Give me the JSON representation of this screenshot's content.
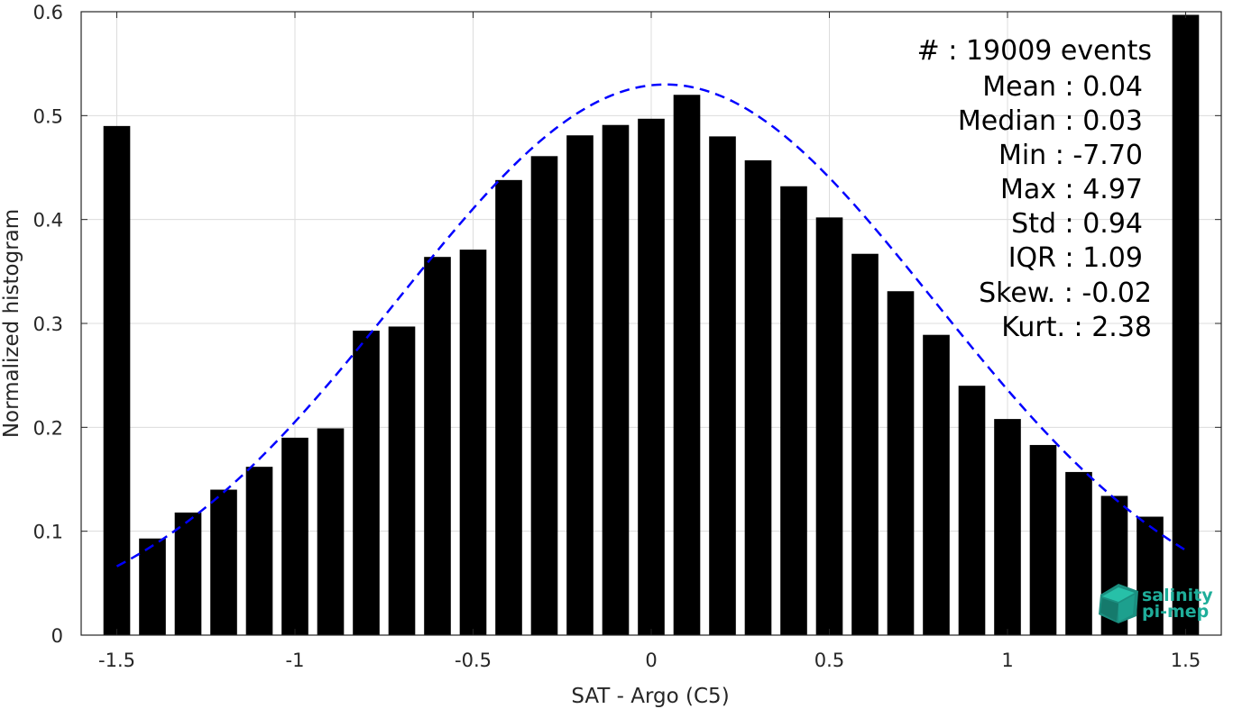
{
  "chart_data": {
    "type": "bar",
    "xlabel": "SAT - Argo (C5)",
    "ylabel": "Normalized histogram",
    "xlim": [
      -1.6,
      1.6
    ],
    "ylim": [
      0,
      0.6
    ],
    "grid": true,
    "x_ticks": [
      -1.5,
      -1,
      -0.5,
      0,
      0.5,
      1,
      1.5
    ],
    "x_tick_labels": [
      "-1.5",
      "-1",
      "-0.5",
      "0",
      "0.5",
      "1",
      "1.5"
    ],
    "y_ticks": [
      0,
      0.1,
      0.2,
      0.3,
      0.4,
      0.5,
      0.6
    ],
    "y_tick_labels": [
      "0",
      "0.1",
      "0.2",
      "0.3",
      "0.4",
      "0.5",
      "0.6"
    ],
    "bar_width": 0.075,
    "bar_color": "#000000",
    "x": [
      -1.5,
      -1.4,
      -1.3,
      -1.2,
      -1.1,
      -1.0,
      -0.9,
      -0.8,
      -0.7,
      -0.6,
      -0.5,
      -0.4,
      -0.3,
      -0.2,
      -0.1,
      0.0,
      0.1,
      0.2,
      0.3,
      0.4,
      0.5,
      0.6,
      0.7,
      0.8,
      0.9,
      1.0,
      1.1,
      1.2,
      1.3,
      1.4,
      1.5
    ],
    "values": [
      0.49,
      0.093,
      0.118,
      0.14,
      0.162,
      0.19,
      0.199,
      0.293,
      0.297,
      0.364,
      0.371,
      0.438,
      0.461,
      0.481,
      0.491,
      0.497,
      0.52,
      0.48,
      0.457,
      0.432,
      0.402,
      0.367,
      0.331,
      0.289,
      0.24,
      0.208,
      0.183,
      0.157,
      0.134,
      0.114,
      0.597
    ],
    "fit_curve": {
      "style": "dashed",
      "color": "#0000ff",
      "mean": 0.04,
      "std": 0.755,
      "peak": 0.53,
      "x_range": [
        -1.5,
        1.5
      ]
    }
  },
  "stats": [
    {
      "label": "#  : 19009 events"
    },
    {
      "label": "Mean : 0.04"
    },
    {
      "label": "Median : 0.03"
    },
    {
      "label": "Min : -7.70"
    },
    {
      "label": "Max : 4.97"
    },
    {
      "label": "Std : 0.94"
    },
    {
      "label": "IQR : 1.09"
    },
    {
      "label": "Skew. : -0.02"
    },
    {
      "label": "Kurt. : 2.38"
    }
  ],
  "logo": {
    "line1": "salinity",
    "line2": "pi-mep",
    "color": "#1fae9a",
    "icon": "salinity-pimep-cube-logo"
  }
}
